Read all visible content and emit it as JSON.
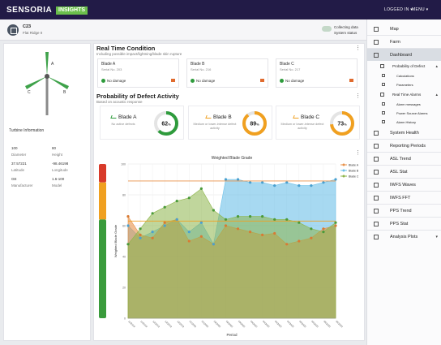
{
  "header": {
    "logo": "SENSORIA",
    "logo_badge": "INSIGHTS",
    "user_label": "LOGGED IN",
    "user_caret": "▾",
    "menu_label": "MENU",
    "menu_caret": "▾"
  },
  "site": {
    "id": "C23",
    "name": "Flat Ridge II",
    "status_line1": "Collecting data",
    "status_line2": "System status"
  },
  "turbine": {
    "info_title": "Turbine Information",
    "fields": [
      {
        "value": "100",
        "label": "Diameter"
      },
      {
        "value": "80",
        "label": "Height"
      },
      {
        "value": "37.57221",
        "label": "Latitude"
      },
      {
        "value": "-98.46198",
        "label": "Longitude"
      },
      {
        "value": "GE",
        "label": "Manufacturer"
      },
      {
        "value": "1.6-100",
        "label": "Model"
      }
    ]
  },
  "realtime": {
    "title": "Real Time Condition",
    "subtitle": "Including possible impact/lightning/blade skin rupture",
    "blades": [
      {
        "name": "Blade A",
        "serial": "Serial No. 203",
        "status": "No damage"
      },
      {
        "name": "Blade B",
        "serial": "Serial No. 216",
        "status": "No damage"
      },
      {
        "name": "Blade C",
        "serial": "Serial No. 217",
        "status": "No damage"
      }
    ]
  },
  "probability": {
    "title": "Probability of Defect Activity",
    "subtitle": "Based on acoustic response",
    "cards": [
      {
        "name": "Blade A",
        "sub": "No active defects",
        "pct": "62",
        "pct_unit": "%",
        "value": 0.62,
        "color": "#2e9b3c"
      },
      {
        "name": "Blade B",
        "sub": "Medium or lower-intense defect activity",
        "pct": "89",
        "pct_unit": "%",
        "value": 0.89,
        "color": "#f0a020"
      },
      {
        "name": "Blade C",
        "sub": "Medium or lower-intense defect activity",
        "pct": "73",
        "pct_unit": "%",
        "value": 0.73,
        "color": "#f0a020"
      }
    ]
  },
  "chart_data": {
    "type": "area",
    "title": "Weighted Blade Grade",
    "xlabel": "Period",
    "ylabel": "Weighted Blade Grade",
    "ylim": [
      0,
      100
    ],
    "yticks": [
      "100",
      "80",
      "60",
      "40",
      "20",
      "0"
    ],
    "x": [
      "11/2019",
      "11/2019",
      "12/2019",
      "12/2019",
      "12/2019",
      "01/2020",
      "01/2020",
      "02/2020",
      "02/2020",
      "03/2020",
      "03/2020",
      "04/2020",
      "04/2020",
      "04/2020",
      "05/2020",
      "05/2020",
      "06/2020",
      "06/2020"
    ],
    "series": [
      {
        "name": "Blade A",
        "color": "#e8924a",
        "values": [
          66,
          54,
          52,
          62,
          64,
          50,
          53,
          48,
          60,
          58,
          56,
          54,
          55,
          48,
          50,
          52,
          58,
          60
        ]
      },
      {
        "name": "Blade B",
        "color": "#6cc0e8",
        "values": [
          60,
          52,
          56,
          60,
          64,
          56,
          62,
          48,
          90,
          90,
          88,
          88,
          86,
          88,
          86,
          86,
          88,
          90
        ]
      },
      {
        "name": "Blade C",
        "color": "#8db54a",
        "values": [
          48,
          58,
          68,
          72,
          76,
          78,
          84,
          70,
          64,
          66,
          66,
          66,
          64,
          64,
          62,
          58,
          56,
          62
        ]
      }
    ],
    "thresholds": [
      {
        "value": 89,
        "color": "#e8924a"
      },
      {
        "value": 63,
        "color": "#f0a020"
      }
    ],
    "legend": "right",
    "grid": true
  },
  "sidebar": {
    "items": [
      {
        "label": "Map",
        "icon": "map-icon",
        "level": 0
      },
      {
        "label": "Farm",
        "icon": "farm-icon",
        "level": 0
      },
      {
        "label": "Dashboard",
        "icon": "dashboard-icon",
        "level": 0,
        "active": true
      },
      {
        "label": "Probability of Defect",
        "icon": "defect-icon",
        "level": 1,
        "caret": "▴"
      },
      {
        "label": "Calculations",
        "icon": "calculations-icon",
        "level": 2
      },
      {
        "label": "Parameters",
        "icon": "parameters-icon",
        "level": 2
      },
      {
        "label": "Real Time Alarms",
        "icon": "alarm-icon",
        "level": 1,
        "caret": "▴"
      },
      {
        "label": "Alarm messages",
        "icon": "message-icon",
        "level": 2
      },
      {
        "label": "Power Source Alarms",
        "icon": "power-icon",
        "level": 2
      },
      {
        "label": "Alarm History",
        "icon": "history-icon",
        "level": 2
      },
      {
        "label": "System Health",
        "icon": "health-icon",
        "level": 0
      },
      {
        "label": "Reporting Periods",
        "icon": "calendar-icon",
        "level": 0
      },
      {
        "label": "ASL Trend",
        "icon": "trend-icon",
        "level": 0
      },
      {
        "label": "ASL Stat",
        "icon": "stat-icon",
        "level": 0
      },
      {
        "label": "IWFS Waves",
        "icon": "waves-icon",
        "level": 0
      },
      {
        "label": "IWFS FFT",
        "icon": "fft-icon",
        "level": 0
      },
      {
        "label": "PPS Trend",
        "icon": "trend-icon",
        "level": 0
      },
      {
        "label": "PPS Stat",
        "icon": "stat-icon",
        "level": 0
      },
      {
        "label": "Analysis Plots",
        "icon": "plots-icon",
        "level": 0,
        "caret": "▾"
      }
    ]
  }
}
